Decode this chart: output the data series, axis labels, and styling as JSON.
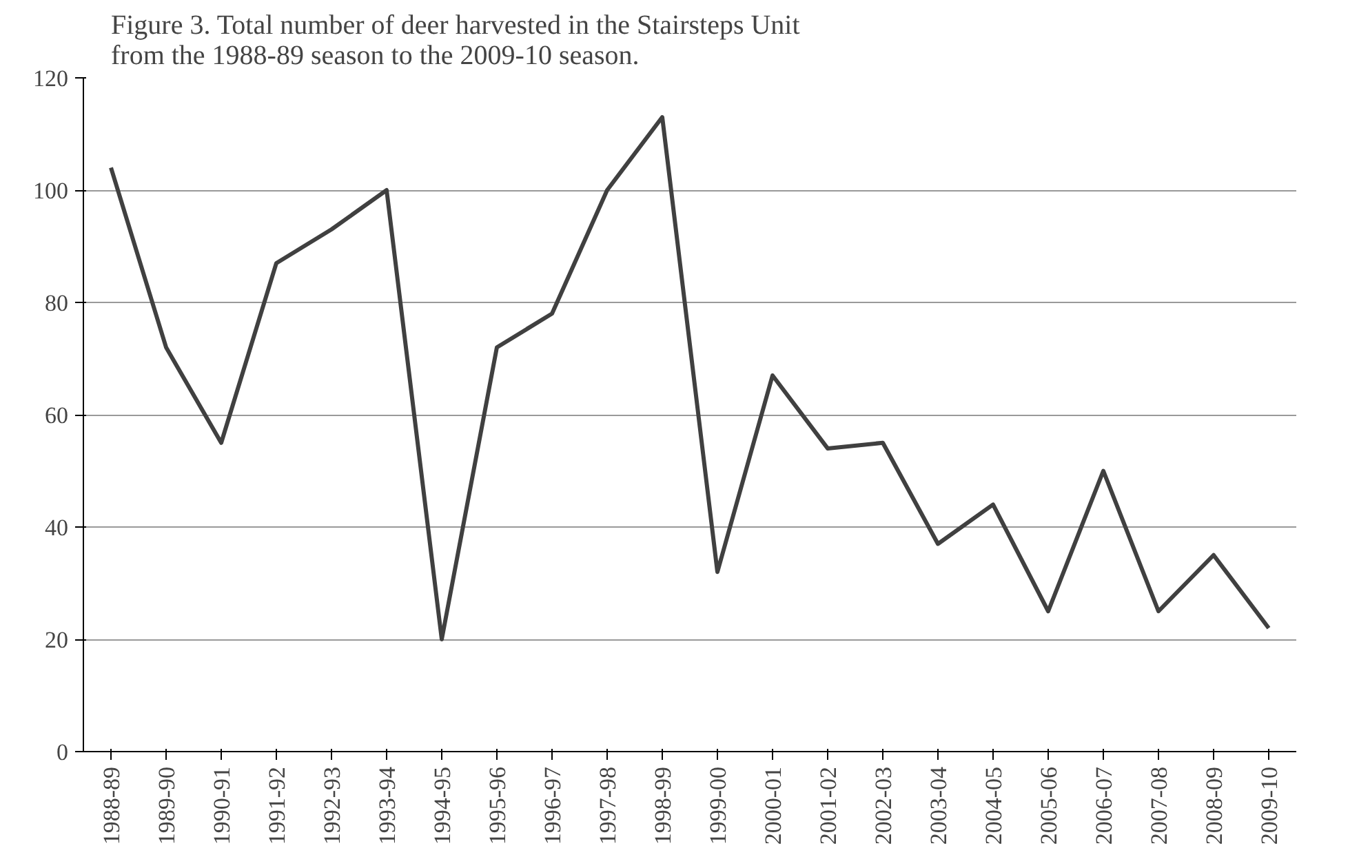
{
  "chart_data": {
    "type": "line",
    "title": "Figure 3. Total number of deer harvested in the Stairsteps Unit\nfrom the 1988-89 season to the 2009-10 season.",
    "categories": [
      "1988-89",
      "1989-90",
      "1990-91",
      "1991-92",
      "1992-93",
      "1993-94",
      "1994-95",
      "1995-96",
      "1996-97",
      "1997-98",
      "1998-99",
      "1999-00",
      "2000-01",
      "2001-02",
      "2002-03",
      "2003-04",
      "2004-05",
      "2005-06",
      "2006-07",
      "2007-08",
      "2008-09",
      "2009-10"
    ],
    "series": [
      {
        "color": "#404040",
        "values": [
          104,
          72,
          55,
          87,
          93,
          100,
          20,
          72,
          78,
          100,
          113,
          32,
          67,
          54,
          55,
          37,
          44,
          25,
          50,
          25,
          35,
          22
        ]
      }
    ],
    "ylim": [
      0,
      120
    ],
    "yticks": [
      0,
      20,
      40,
      60,
      80,
      100,
      120
    ],
    "grid": "y",
    "marker": "none",
    "line_style": "solid"
  }
}
